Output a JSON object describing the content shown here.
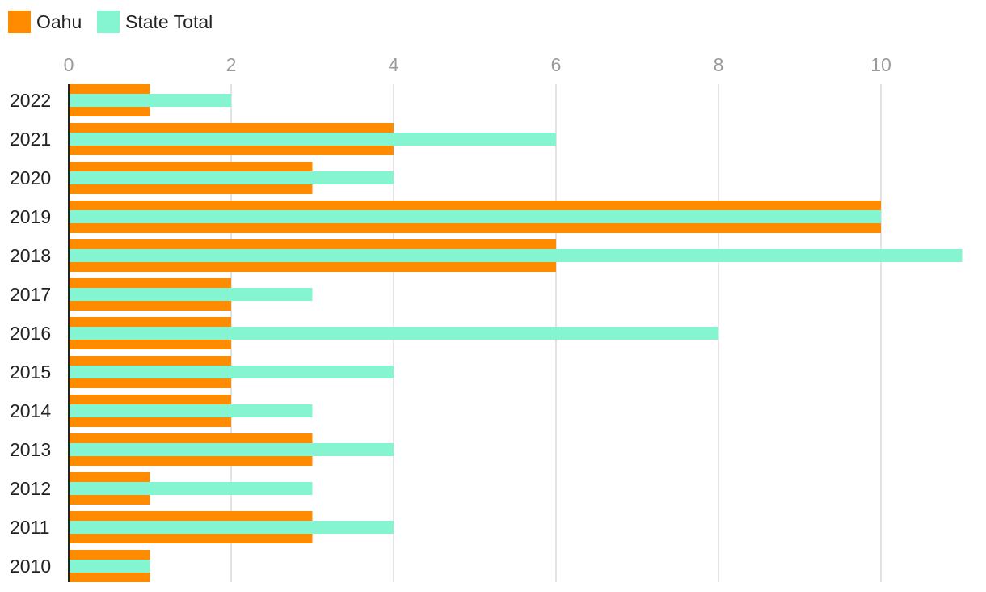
{
  "chart_data": {
    "type": "bar",
    "orientation": "horizontal",
    "categories": [
      "2022",
      "2021",
      "2020",
      "2019",
      "2018",
      "2017",
      "2016",
      "2015",
      "2014",
      "2013",
      "2012",
      "2011",
      "2010"
    ],
    "series": [
      {
        "name": "Oahu",
        "color": "#ff8c00",
        "values": [
          1,
          4,
          3,
          10,
          6,
          2,
          2,
          2,
          2,
          3,
          1,
          3,
          1
        ]
      },
      {
        "name": "State Total",
        "color": "#84f5d0",
        "values": [
          2,
          6,
          4,
          10,
          11,
          3,
          8,
          4,
          3,
          4,
          3,
          4,
          1
        ]
      }
    ],
    "x_ticks": [
      "0",
      "2",
      "4",
      "6",
      "8",
      "10"
    ],
    "xlim": [
      0,
      11
    ],
    "title": "",
    "xlabel": "",
    "ylabel": "",
    "legend_position": "top-left",
    "grid": true
  }
}
